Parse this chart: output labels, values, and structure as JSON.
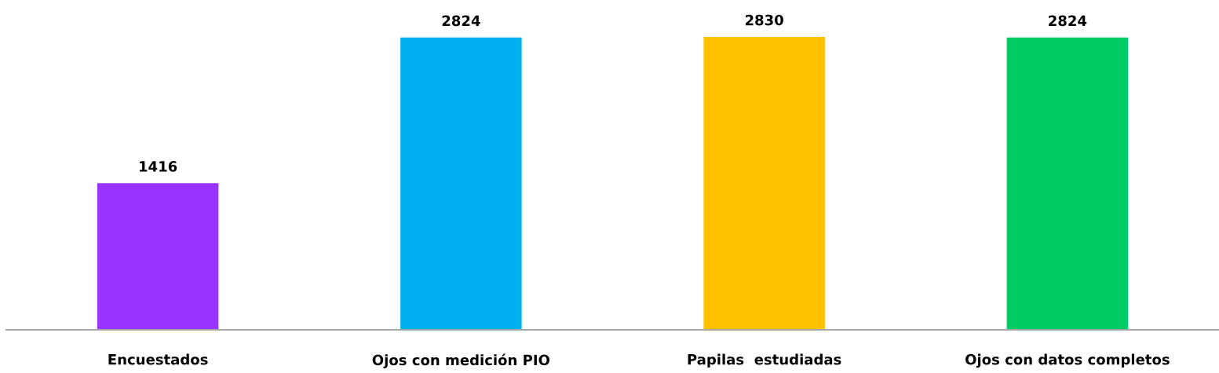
{
  "chart_data": {
    "type": "bar",
    "categories": [
      "Encuestados",
      "Ojos con medición PIO",
      "Papilas  estudiadas",
      "Ojos con datos completos"
    ],
    "values": [
      1416,
      2824,
      2830,
      2824
    ],
    "colors": [
      "#9933ff",
      "#00b0f0",
      "#ffc000",
      "#00cc66"
    ],
    "data_labels": true,
    "grid": false,
    "legend": false
  }
}
